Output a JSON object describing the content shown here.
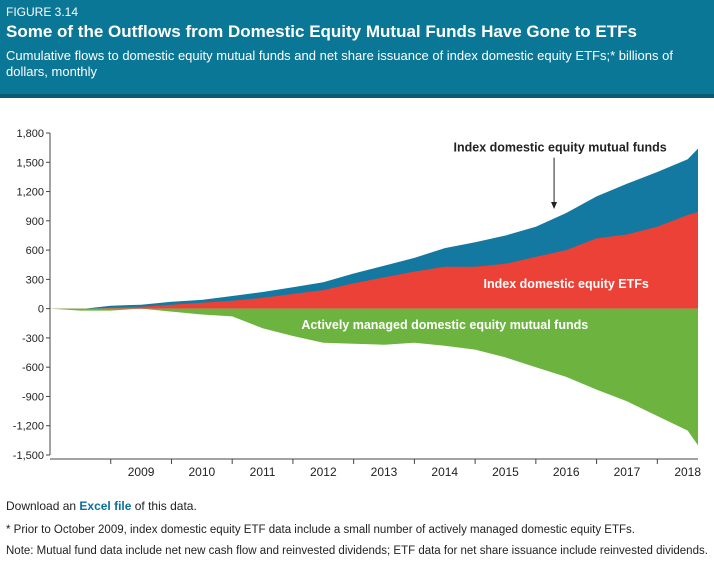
{
  "header": {
    "figure_label": "FIGURE 3.14",
    "title": "Some of the Outflows from Domestic Equity Mutual Funds Have Gone to ETFs",
    "subtitle": "Cumulative flows to domestic equity mutual funds and net share issuance of index domestic equity ETFs;* billions of dollars, monthly"
  },
  "footer": {
    "download_prefix": "Download an ",
    "download_link": "Excel file",
    "download_suffix": " of this data.",
    "footnote": "* Prior to October 2009, index domestic equity ETF data include a small number of actively managed domestic equity ETFs.",
    "note": "Note: Mutual fund data include net new cash flow and reinvested dividends; ETF data for net share issuance include reinvested dividends."
  },
  "colors": {
    "header_bg": "#0b7796",
    "mutual_funds": "#1479a0",
    "etfs": "#ec4136",
    "active_funds": "#6db33f",
    "annotation_text": "#ffffff"
  },
  "chart_data": {
    "type": "area",
    "x": [
      2008.0,
      2008.5,
      2009.0,
      2009.5,
      2010.0,
      2010.5,
      2011.0,
      2011.5,
      2012.0,
      2012.5,
      2013.0,
      2013.5,
      2014.0,
      2014.5,
      2015.0,
      2015.5,
      2016.0,
      2016.5,
      2017.0,
      2017.5,
      2018.0,
      2018.5,
      2018.67
    ],
    "xticks": [
      "2009",
      "2010",
      "2011",
      "2012",
      "2013",
      "2014",
      "2015",
      "2016",
      "2017",
      "2018"
    ],
    "ylim": [
      -1500,
      1800
    ],
    "yticks": [
      "1,800",
      "1,500",
      "1,200",
      "900",
      "600",
      "300",
      "0",
      "-300",
      "-600",
      "-900",
      "-1,200",
      "-1,500"
    ],
    "grid": false,
    "series": [
      {
        "name": "Index domestic equity ETFs",
        "values": [
          0,
          -10,
          10,
          20,
          40,
          60,
          80,
          110,
          150,
          190,
          260,
          320,
          380,
          430,
          430,
          460,
          530,
          600,
          720,
          760,
          840,
          960,
          990
        ]
      },
      {
        "name": "Index domestic equity mutual funds",
        "values": [
          0,
          -5,
          30,
          40,
          70,
          90,
          130,
          170,
          220,
          270,
          360,
          440,
          520,
          620,
          680,
          750,
          840,
          980,
          1150,
          1280,
          1400,
          1530,
          1640
        ]
      },
      {
        "name": "Actively managed domestic equity mutual funds",
        "values": [
          0,
          -20,
          -20,
          0,
          -30,
          -60,
          -80,
          -200,
          -280,
          -350,
          -360,
          -370,
          -350,
          -380,
          -420,
          -500,
          -600,
          -700,
          -830,
          -950,
          -1100,
          -1250,
          -1400
        ]
      }
    ],
    "annotations": [
      {
        "text": "Index domestic equity mutual funds",
        "x": 2016.4,
        "y": 1650
      },
      {
        "text": "Index domestic equity ETFs",
        "x": 2016.5,
        "y": 250
      },
      {
        "text": "Actively managed domestic equity mutual funds",
        "x": 2014.5,
        "y": -170
      }
    ]
  }
}
